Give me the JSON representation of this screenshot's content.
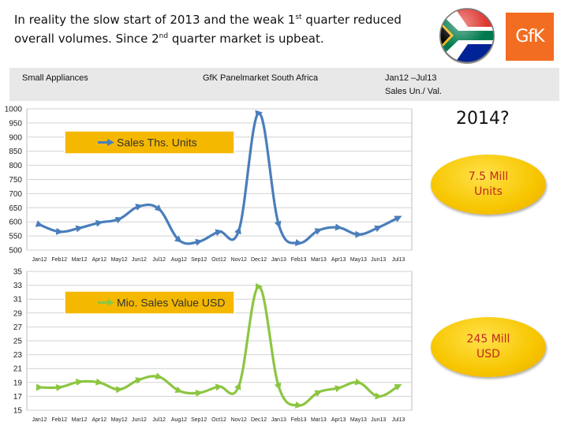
{
  "headline": {
    "part1": "In reality the slow start of 2013 and the weak 1",
    "sup1": "st",
    "part2": " quarter reduced overall volumes. Since 2",
    "sup2": "nd",
    "part3": " quarter market is upbeat."
  },
  "logos": {
    "flag_icon": "south-africa-flag-icon",
    "brand": "GfK"
  },
  "info": {
    "category": "Small Appliances",
    "source": "GfK Panelmarket South Africa",
    "period": "Jan12 –Jul13",
    "measure": "Sales Un./ Val."
  },
  "callouts": {
    "question": "2014?",
    "units_line1": "7.5 Mill",
    "units_line2": "Units",
    "usd_line1": "245 Mill",
    "usd_line2": "USD"
  },
  "colors": {
    "units": "#4a7ebb",
    "value": "#8cc641",
    "bubble": "#f7c600",
    "callout_text": "#c0281d",
    "legend_box": "#f5b800"
  },
  "chart_data": [
    {
      "type": "line",
      "legend": "Sales Ths. Units",
      "categories": [
        "Jan12",
        "Feb12",
        "Mar12",
        "Apr12",
        "May12",
        "Jun12",
        "Jul12",
        "Aug12",
        "Sep12",
        "Oct12",
        "Nov12",
        "Dec12",
        "Jan13",
        "Feb13",
        "Mar13",
        "Apr13",
        "May13",
        "Jun13",
        "Jul13"
      ],
      "yticks": [
        500,
        550,
        600,
        650,
        700,
        750,
        800,
        850,
        900,
        950,
        1000
      ],
      "ylim": [
        500,
        1000
      ],
      "grid": true,
      "series": [
        {
          "name": "Sales Ths. Units",
          "values": [
            590,
            565,
            578,
            597,
            610,
            655,
            645,
            535,
            530,
            565,
            570,
            985,
            590,
            525,
            570,
            580,
            555,
            580,
            615
          ]
        }
      ]
    },
    {
      "type": "line",
      "legend": "Mio. Sales Value USD",
      "categories": [
        "Jan12",
        "Feb12",
        "Mar12",
        "Apr12",
        "May12",
        "Jun12",
        "Jul12",
        "Aug12",
        "Sep12",
        "Oct12",
        "Nov12",
        "Dec12",
        "Jan13",
        "Feb13",
        "Mar13",
        "Apr13",
        "May13",
        "Jun13",
        "Jul13"
      ],
      "yticks": [
        15,
        17,
        19,
        21,
        23,
        25,
        27,
        29,
        31,
        33,
        35
      ],
      "ylim": [
        15,
        35
      ],
      "grid": true,
      "series": [
        {
          "name": "Mio. Sales Value USD",
          "values": [
            18.3,
            18.3,
            19.1,
            19.0,
            18.0,
            19.4,
            19.8,
            17.8,
            17.5,
            18.4,
            18.5,
            32.8,
            18.4,
            15.7,
            17.6,
            18.2,
            19.0,
            17.0,
            18.5
          ]
        }
      ]
    }
  ]
}
